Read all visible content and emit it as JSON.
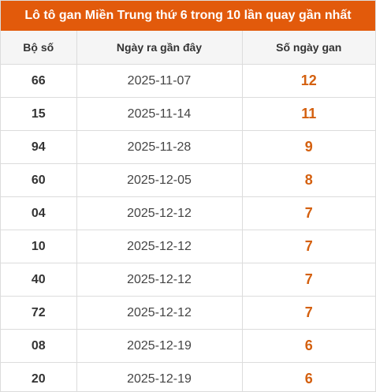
{
  "title": "Lô tô gan Miền Trung thứ 6 trong 10 lần quay gần nhất",
  "columns": {
    "number": "Bộ số",
    "last_date": "Ngày ra gần đây",
    "gap_days": "Số ngày gan"
  },
  "rows": [
    {
      "number": "66",
      "date": "2025-11-07",
      "days": "12"
    },
    {
      "number": "15",
      "date": "2025-11-14",
      "days": "11"
    },
    {
      "number": "94",
      "date": "2025-11-28",
      "days": "9"
    },
    {
      "number": "60",
      "date": "2025-12-05",
      "days": "8"
    },
    {
      "number": "04",
      "date": "2025-12-12",
      "days": "7"
    },
    {
      "number": "10",
      "date": "2025-12-12",
      "days": "7"
    },
    {
      "number": "40",
      "date": "2025-12-12",
      "days": "7"
    },
    {
      "number": "72",
      "date": "2025-12-12",
      "days": "7"
    },
    {
      "number": "08",
      "date": "2025-12-19",
      "days": "6"
    },
    {
      "number": "20",
      "date": "2025-12-19",
      "days": "6"
    }
  ],
  "colors": {
    "header_bg": "#e25a0b",
    "accent_days": "#d4600f",
    "column_header_bg": "#f5f5f5",
    "border": "#dcdcdc"
  }
}
